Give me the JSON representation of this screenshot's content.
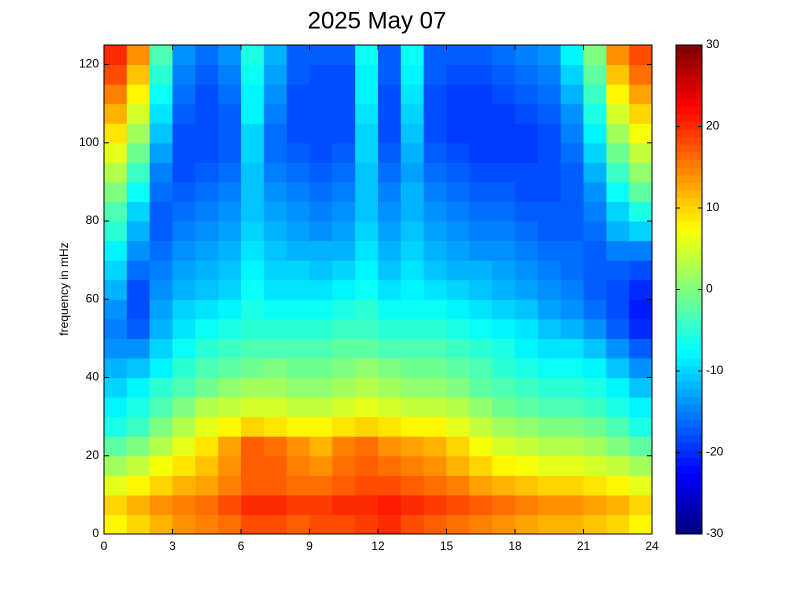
{
  "chart_data": {
    "type": "heatmap",
    "title": "2025 May 07",
    "y_label": "frequency in mHz",
    "xbins": [
      0,
      1,
      2,
      3,
      4,
      5,
      6,
      7,
      8,
      9,
      10,
      11,
      12,
      13,
      14,
      15,
      16,
      17,
      18,
      19,
      20,
      21,
      22,
      23,
      24
    ],
    "ybins": [
      0,
      5,
      10,
      15,
      20,
      25,
      30,
      35,
      40,
      45,
      50,
      55,
      60,
      65,
      70,
      75,
      80,
      85,
      90,
      95,
      100,
      105,
      110,
      115,
      120,
      125
    ],
    "xlim": [
      0,
      24
    ],
    "ylim": [
      0,
      125
    ],
    "xticks": [
      0,
      3,
      6,
      9,
      12,
      15,
      18,
      21,
      24
    ],
    "yticks": [
      0,
      20,
      40,
      60,
      80,
      100,
      120
    ],
    "colormap": "jet",
    "clim": [
      -30,
      30
    ],
    "cticks": [
      -30,
      -20,
      -10,
      0,
      10,
      20,
      30
    ],
    "z": [
      [
        8,
        10,
        12,
        14,
        15,
        16,
        18,
        18,
        17,
        18,
        18,
        19,
        20,
        18,
        17,
        16,
        15,
        14,
        13,
        12,
        12,
        11,
        10,
        8
      ],
      [
        10,
        12,
        14,
        15,
        16,
        18,
        20,
        20,
        19,
        19,
        20,
        20,
        21,
        20,
        19,
        18,
        17,
        16,
        15,
        14,
        14,
        13,
        12,
        10
      ],
      [
        6,
        8,
        10,
        12,
        13,
        15,
        17,
        17,
        16,
        16,
        17,
        18,
        18,
        17,
        16,
        15,
        13,
        12,
        11,
        10,
        10,
        9,
        8,
        6
      ],
      [
        2,
        4,
        7,
        9,
        11,
        14,
        17,
        17,
        15,
        14,
        16,
        17,
        16,
        15,
        14,
        12,
        10,
        8,
        7,
        6,
        6,
        5,
        4,
        2
      ],
      [
        -2,
        0,
        3,
        6,
        9,
        13,
        17,
        16,
        14,
        12,
        15,
        16,
        14,
        13,
        12,
        10,
        7,
        5,
        4,
        3,
        3,
        2,
        0,
        -2
      ],
      [
        -6,
        -4,
        0,
        3,
        6,
        8,
        10,
        9,
        8,
        8,
        9,
        10,
        9,
        8,
        8,
        6,
        4,
        2,
        1,
        0,
        0,
        -1,
        -3,
        -6
      ],
      [
        -8,
        -6,
        -3,
        0,
        3,
        4,
        5,
        5,
        4,
        4,
        5,
        6,
        5,
        4,
        4,
        3,
        1,
        -1,
        -2,
        -3,
        -3,
        -4,
        -6,
        -8
      ],
      [
        -10,
        -8,
        -5,
        -3,
        -1,
        1,
        2,
        2,
        1,
        1,
        2,
        3,
        2,
        1,
        1,
        0,
        -2,
        -3,
        -4,
        -5,
        -5,
        -6,
        -8,
        -11
      ],
      [
        -12,
        -11,
        -8,
        -5,
        -3,
        -2,
        -1,
        0,
        -1,
        -1,
        0,
        1,
        0,
        -1,
        -1,
        -2,
        -3,
        -5,
        -6,
        -7,
        -7,
        -8,
        -11,
        -14
      ],
      [
        -14,
        -14,
        -10,
        -7,
        -5,
        -4,
        -3,
        -3,
        -3,
        -3,
        -2,
        -2,
        -3,
        -3,
        -3,
        -4,
        -5,
        -6,
        -8,
        -9,
        -9,
        -11,
        -14,
        -17
      ],
      [
        -15,
        -17,
        -12,
        -9,
        -7,
        -6,
        -5,
        -5,
        -5,
        -5,
        -4,
        -4,
        -5,
        -5,
        -5,
        -6,
        -7,
        -8,
        -9,
        -11,
        -12,
        -14,
        -17,
        -20
      ],
      [
        -14,
        -18,
        -13,
        -10,
        -9,
        -8,
        -6,
        -7,
        -7,
        -7,
        -6,
        -5,
        -7,
        -7,
        -7,
        -8,
        -9,
        -10,
        -11,
        -13,
        -14,
        -16,
        -18,
        -21
      ],
      [
        -12,
        -18,
        -14,
        -12,
        -11,
        -10,
        -7,
        -9,
        -9,
        -9,
        -8,
        -7,
        -9,
        -8,
        -9,
        -10,
        -11,
        -12,
        -13,
        -14,
        -15,
        -17,
        -18,
        -20
      ],
      [
        -10,
        -16,
        -15,
        -13,
        -12,
        -11,
        -8,
        -10,
        -10,
        -11,
        -10,
        -8,
        -11,
        -9,
        -11,
        -12,
        -12,
        -13,
        -14,
        -15,
        -16,
        -17,
        -17,
        -18
      ],
      [
        -8,
        -14,
        -16,
        -14,
        -13,
        -12,
        -9,
        -11,
        -12,
        -12,
        -12,
        -9,
        -12,
        -10,
        -12,
        -13,
        -14,
        -14,
        -15,
        -16,
        -16,
        -17,
        -15,
        -15
      ],
      [
        -5,
        -12,
        -17,
        -15,
        -14,
        -13,
        -10,
        -12,
        -13,
        -14,
        -13,
        -10,
        -13,
        -11,
        -13,
        -14,
        -15,
        -15,
        -16,
        -17,
        -17,
        -16,
        -12,
        -10
      ],
      [
        -3,
        -10,
        -17,
        -16,
        -15,
        -14,
        -11,
        -13,
        -14,
        -15,
        -14,
        -11,
        -14,
        -12,
        -14,
        -15,
        -16,
        -16,
        -17,
        -17,
        -17,
        -15,
        -10,
        -6
      ],
      [
        0,
        -7,
        -16,
        -17,
        -16,
        -15,
        -11,
        -14,
        -15,
        -16,
        -15,
        -11,
        -15,
        -12,
        -15,
        -16,
        -17,
        -17,
        -18,
        -18,
        -17,
        -14,
        -7,
        -2
      ],
      [
        3,
        -4,
        -15,
        -18,
        -17,
        -16,
        -11,
        -15,
        -16,
        -17,
        -16,
        -11,
        -16,
        -13,
        -16,
        -17,
        -18,
        -18,
        -18,
        -18,
        -17,
        -12,
        -4,
        1
      ],
      [
        6,
        -1,
        -13,
        -18,
        -18,
        -17,
        -10,
        -16,
        -17,
        -18,
        -17,
        -10,
        -17,
        -12,
        -17,
        -18,
        -19,
        -19,
        -19,
        -18,
        -16,
        -10,
        -1,
        4
      ],
      [
        9,
        2,
        -11,
        -18,
        -18,
        -17,
        -10,
        -16,
        -18,
        -18,
        -18,
        -10,
        -18,
        -11,
        -18,
        -19,
        -19,
        -19,
        -19,
        -18,
        -15,
        -8,
        2,
        7
      ],
      [
        12,
        5,
        -9,
        -17,
        -18,
        -17,
        -8,
        -15,
        -18,
        -18,
        -18,
        -9,
        -18,
        -10,
        -18,
        -19,
        -19,
        -19,
        -18,
        -17,
        -14,
        -6,
        5,
        10
      ],
      [
        15,
        8,
        -7,
        -16,
        -18,
        -16,
        -8,
        -14,
        -18,
        -18,
        -18,
        -8,
        -18,
        -9,
        -18,
        -19,
        -19,
        -18,
        -17,
        -16,
        -12,
        -4,
        8,
        13
      ],
      [
        18,
        11,
        -5,
        -15,
        -17,
        -15,
        -7,
        -13,
        -17,
        -18,
        -18,
        -8,
        -17,
        -8,
        -17,
        -18,
        -18,
        -17,
        -16,
        -15,
        -10,
        -2,
        11,
        16
      ],
      [
        20,
        14,
        -3,
        -14,
        -16,
        -14,
        -6,
        -12,
        -17,
        -17,
        -17,
        -7,
        -17,
        -7,
        -17,
        -17,
        -17,
        -16,
        -15,
        -14,
        -8,
        0,
        14,
        18
      ]
    ]
  }
}
